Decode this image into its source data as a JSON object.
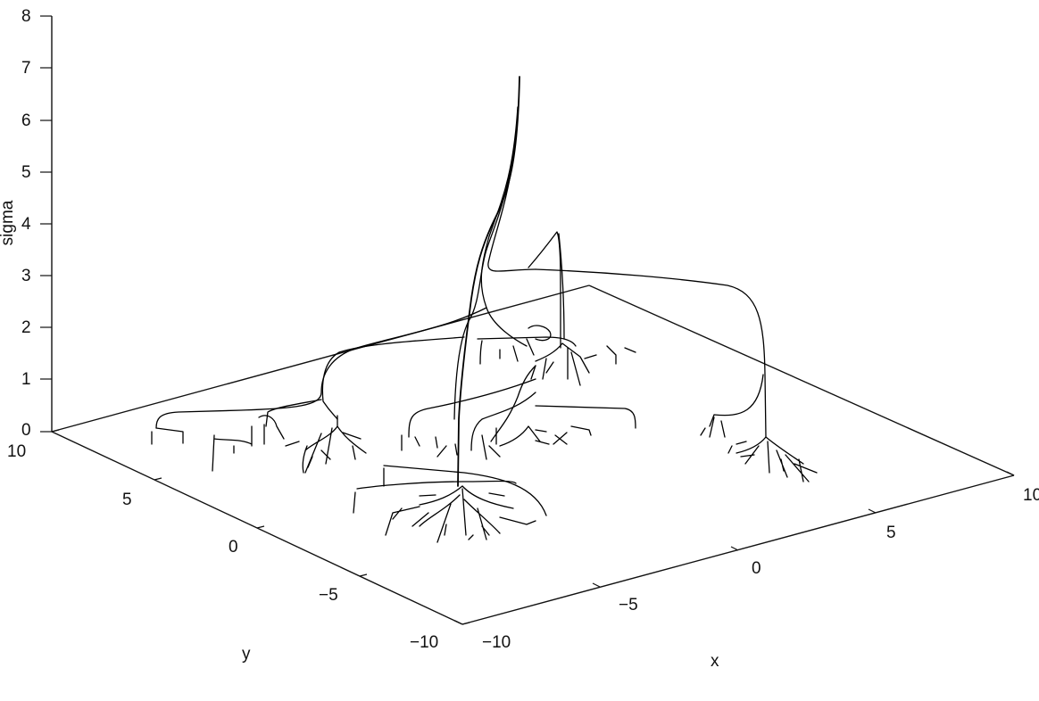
{
  "figure": {
    "z_axis": {
      "label": "sigma",
      "ticks": [
        "8",
        "7",
        "6",
        "5",
        "4",
        "3",
        "2",
        "1",
        "0"
      ]
    },
    "y_axis": {
      "label": "y",
      "ticks": [
        "10",
        "5",
        "0",
        "−5",
        "−10"
      ]
    },
    "x_axis": {
      "label": "x",
      "ticks": [
        "−10",
        "−5",
        "0",
        "5",
        "10"
      ]
    }
  }
}
